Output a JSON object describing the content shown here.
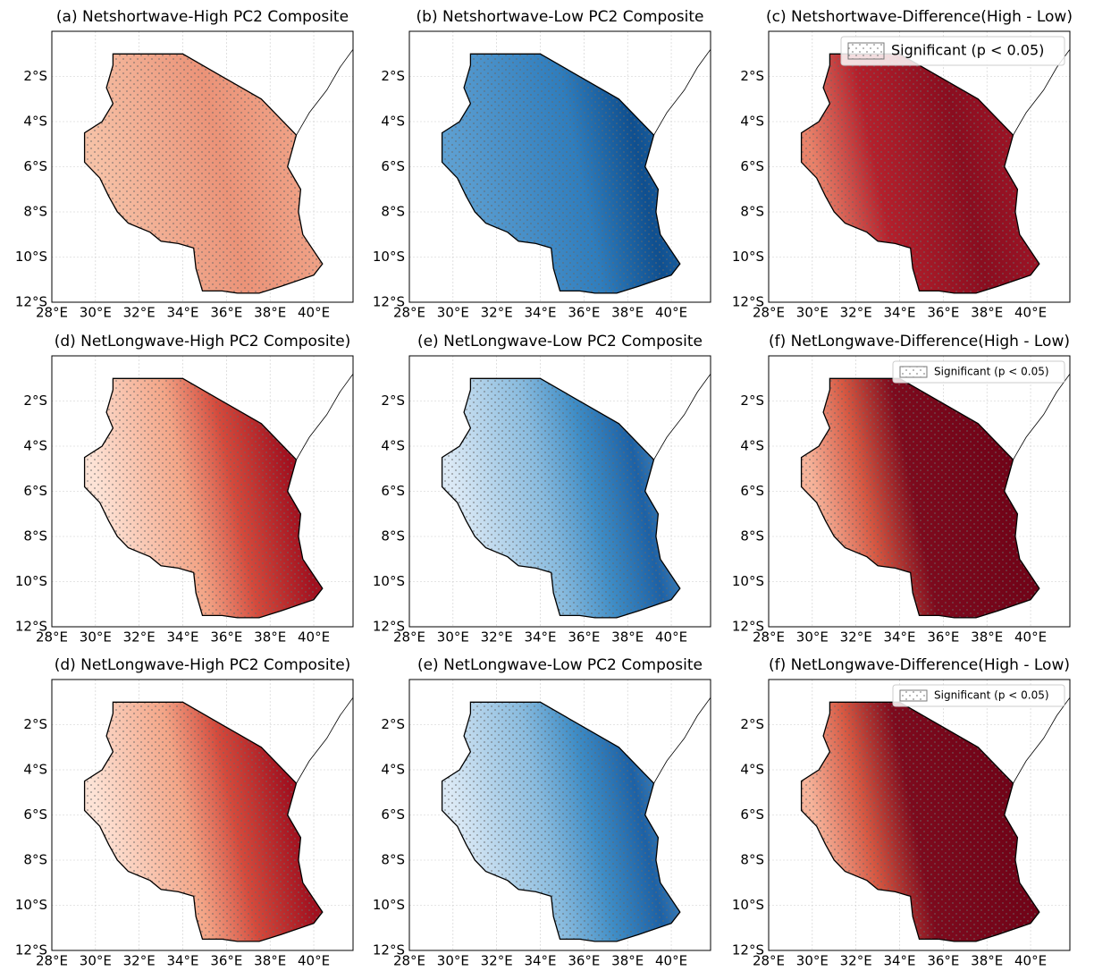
{
  "panels": [
    {
      "title": "(a) Netshortwave-High PC2 Composite"
    },
    {
      "title": "(b) Netshortwave-Low PC2 Composite"
    },
    {
      "title": "(c) Netshortwave-Difference(High - Low)",
      "legend": "Significant (p < 0.05)"
    },
    {
      "title": "(d) NetLongwave-High PC2 Composite)"
    },
    {
      "title": "(e) NetLongwave-Low PC2 Composite"
    },
    {
      "title": "(f) NetLongwave-Difference(High - Low)",
      "legend": "Significant (p < 0.05)"
    },
    {
      "title": "(d) NetLongwave-High PC2 Composite)"
    },
    {
      "title": "(e) NetLongwave-Low PC2 Composite"
    },
    {
      "title": "(f) NetLongwave-Difference(High - Low)",
      "legend": "Significant (p < 0.05)"
    }
  ],
  "axes": {
    "xtick_labels": [
      "28°E",
      "30°E",
      "32°E",
      "34°E",
      "36°E",
      "38°E",
      "40°E"
    ],
    "ytick_labels": [
      "2°S",
      "4°S",
      "6°S",
      "8°S",
      "10°S",
      "12°S"
    ]
  }
}
